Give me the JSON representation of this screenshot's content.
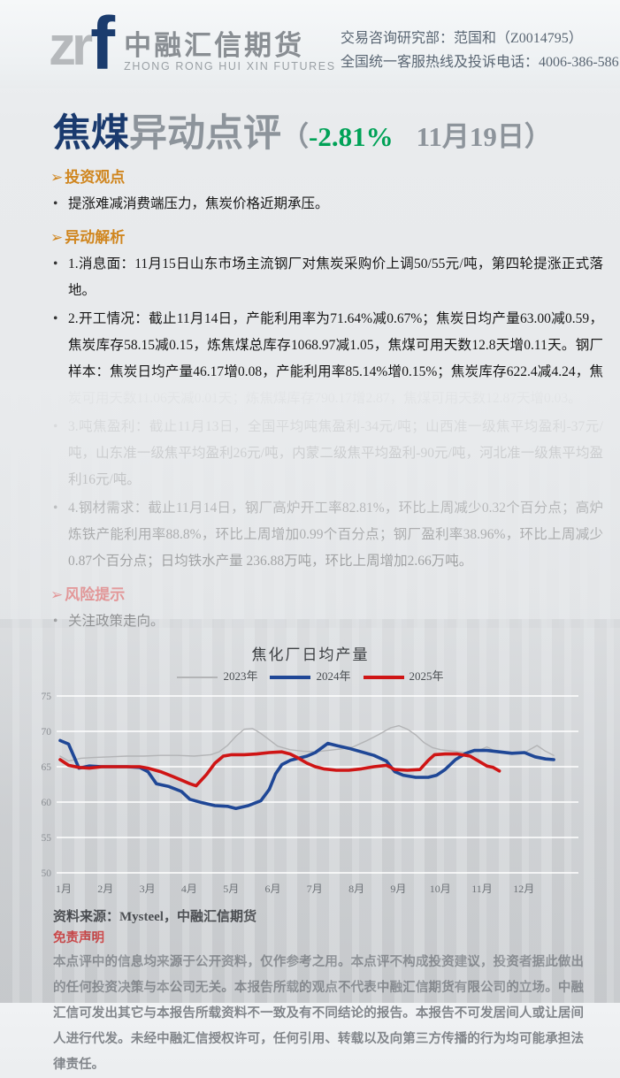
{
  "header": {
    "logo": {
      "mark_gray": "zr",
      "mark_blue": "f",
      "name_cn": "中融汇信期货",
      "name_en": "ZHONG RONG HUI XIN FUTURES"
    },
    "contact_line1": "交易咨询研究部：范国和（Z0014795）",
    "contact_line2": "全国统一客服热线及投诉电话：4006-386-586"
  },
  "title": {
    "product": "焦煤",
    "suffix": "异动点评",
    "paren_open": "（",
    "change": "-2.81%",
    "date": "11月19日",
    "paren_close": "）",
    "change_color": "#00a257",
    "product_color": "#1a3a6e"
  },
  "sections": {
    "viewpoint": {
      "heading": "投资观点",
      "bullets": [
        "提涨难减消费端压力，焦炭价格近期承压。"
      ]
    },
    "analysis": {
      "heading": "异动解析",
      "bullets": [
        "1.消息面：11月15日山东市场主流钢厂对焦炭采购价上调50/55元/吨，第四轮提涨正式落地。",
        "2.开工情况：截止11月14日，产能利用率为71.64%减0.67%；焦炭日均产量63.00减0.59，焦炭库存58.15减0.15，炼焦煤总库存1068.97减1.05，焦煤可用天数12.8天增0.11天。钢厂样本：焦炭日均产量46.17增0.08，产能利用率85.14%增0.15%；焦炭库存622.4减4.24，焦炭可用天数11.06天减0.01天；炼焦煤库存790.17增2.87，焦煤可用天数12.87天增0.03。",
        "3.吨焦盈利：截止11月13日，全国平均吨焦盈利-34元/吨；山西准一级焦平均盈利-37元/吨，山东准一级焦平均盈利26元/吨，内蒙二级焦平均盈利-90元/吨，河北准一级焦平均盈利16元/吨。",
        "4.钢材需求：截止11月14日，钢厂高炉开工率82.81%，环比上周减少0.32个百分点；高炉炼铁产能利用率88.8%，环比上周增加0.99个百分点；钢厂盈利率38.96%，环比上周减少0.87个百分点；日均铁水产量 236.88万吨，环比上周增加2.66万吨。"
      ]
    },
    "risk": {
      "heading": "风险提示",
      "bullets": [
        "关注政策走向。"
      ]
    }
  },
  "source_line": "资料来源：Mysteel，中融汇信期货",
  "disclaimer": {
    "heading": "免责声明",
    "body": "本点评中的信息均来源于公开资料，仅作参考之用。本点评不构成投资建议，投资者据此做出的任何投资决策与本公司无关。本报告所载的观点不代表中融汇信期货有限公司的立场。中融汇信可发出其它与本报告所载资料不一致及有不同结论的报告。本报告不可发居间人或让居间人进行代发。未经中融汇信授权许可，任何引用、转载以及向第三方传播的行为均可能承担法律责任。"
  },
  "chart_data": {
    "type": "line",
    "title": "焦化厂日均产量",
    "legend_position": "top",
    "grid": "horizontal",
    "x_axis": {
      "unit": "month",
      "tick_labels": [
        "1月",
        "2月",
        "3月",
        "4月",
        "5月",
        "6月",
        "7月",
        "8月",
        "9月",
        "10月",
        "11月",
        "12月"
      ]
    },
    "y_axis": {
      "min": 50,
      "max": 75,
      "ticks": [
        50,
        55,
        60,
        65,
        70,
        75
      ]
    },
    "series": [
      {
        "name": "2023年",
        "color": "#b3b4b6",
        "width": 1.4,
        "points": [
          [
            1,
            66.5
          ],
          [
            1.2,
            65.8
          ],
          [
            1.5,
            66.2
          ],
          [
            1.8,
            66.3
          ],
          [
            2.2,
            66.4
          ],
          [
            2.6,
            66.5
          ],
          [
            3,
            66.5
          ],
          [
            3.4,
            66.6
          ],
          [
            3.8,
            66.6
          ],
          [
            4.2,
            66.5
          ],
          [
            4.6,
            66.7
          ],
          [
            4.8,
            67.1
          ],
          [
            5,
            68
          ],
          [
            5.2,
            69.3
          ],
          [
            5.4,
            70.3
          ],
          [
            5.6,
            70.4
          ],
          [
            5.8,
            69.7
          ],
          [
            6,
            68.8
          ],
          [
            6.2,
            67.9
          ],
          [
            6.5,
            67.4
          ],
          [
            6.8,
            67.2
          ],
          [
            7.1,
            67.1
          ],
          [
            7.4,
            67.3
          ],
          [
            7.7,
            67.5
          ],
          [
            8,
            67.8
          ],
          [
            8.3,
            68.6
          ],
          [
            8.6,
            69.5
          ],
          [
            8.9,
            70.5
          ],
          [
            9.1,
            70.8
          ],
          [
            9.3,
            70.3
          ],
          [
            9.5,
            69.5
          ],
          [
            9.7,
            68.4
          ],
          [
            9.9,
            67.7
          ],
          [
            10.1,
            67.4
          ],
          [
            10.4,
            67.2
          ],
          [
            10.7,
            67
          ],
          [
            11,
            67.3
          ],
          [
            11.2,
            67.8
          ],
          [
            11.4,
            67.2
          ],
          [
            11.6,
            66.9
          ],
          [
            11.9,
            66.9
          ],
          [
            12.1,
            67
          ],
          [
            12.4,
            68
          ],
          [
            12.6,
            67.2
          ],
          [
            12.8,
            66.6
          ]
        ]
      },
      {
        "name": "2024年",
        "color": "#1f4796",
        "width": 3.6,
        "points": [
          [
            1,
            68.7
          ],
          [
            1.2,
            68.2
          ],
          [
            1.45,
            64.8
          ],
          [
            1.7,
            65.1
          ],
          [
            2,
            65
          ],
          [
            2.3,
            65
          ],
          [
            2.6,
            65
          ],
          [
            2.9,
            64.9
          ],
          [
            3.1,
            64.3
          ],
          [
            3.3,
            62.6
          ],
          [
            3.6,
            62.2
          ],
          [
            3.9,
            61.5
          ],
          [
            4.1,
            60.4
          ],
          [
            4.4,
            59.9
          ],
          [
            4.7,
            59.5
          ],
          [
            5,
            59.4
          ],
          [
            5.2,
            59.1
          ],
          [
            5.5,
            59.5
          ],
          [
            5.8,
            60.2
          ],
          [
            6,
            61.8
          ],
          [
            6.15,
            64
          ],
          [
            6.3,
            65.3
          ],
          [
            6.5,
            65.9
          ],
          [
            6.7,
            66.2
          ],
          [
            6.9,
            66.5
          ],
          [
            7.1,
            67
          ],
          [
            7.4,
            68.3
          ],
          [
            7.6,
            68
          ],
          [
            7.9,
            67.6
          ],
          [
            8.2,
            67.1
          ],
          [
            8.5,
            66.6
          ],
          [
            8.8,
            65.8
          ],
          [
            9,
            64.3
          ],
          [
            9.2,
            63.8
          ],
          [
            9.5,
            63.5
          ],
          [
            9.8,
            63.5
          ],
          [
            10,
            63.8
          ],
          [
            10.2,
            64.6
          ],
          [
            10.45,
            66
          ],
          [
            10.7,
            66.9
          ],
          [
            10.9,
            67.3
          ],
          [
            11.2,
            67.3
          ],
          [
            11.5,
            67.1
          ],
          [
            11.8,
            66.9
          ],
          [
            12.1,
            67
          ],
          [
            12.35,
            66.4
          ],
          [
            12.6,
            66.1
          ],
          [
            12.8,
            66
          ]
        ]
      },
      {
        "name": "2025年",
        "color": "#cf1515",
        "width": 3.6,
        "points": [
          [
            1,
            66
          ],
          [
            1.2,
            65.2
          ],
          [
            1.45,
            64.9
          ],
          [
            1.7,
            64.8
          ],
          [
            2,
            65
          ],
          [
            2.3,
            65
          ],
          [
            2.6,
            65
          ],
          [
            2.9,
            65
          ],
          [
            3.1,
            64.8
          ],
          [
            3.4,
            64.3
          ],
          [
            3.7,
            63.6
          ],
          [
            3.9,
            63.1
          ],
          [
            4.1,
            62.6
          ],
          [
            4.25,
            62.3
          ],
          [
            4.5,
            63.9
          ],
          [
            4.7,
            65.5
          ],
          [
            4.9,
            66.5
          ],
          [
            5.1,
            66.7
          ],
          [
            5.4,
            66.7
          ],
          [
            5.7,
            66.8
          ],
          [
            6,
            67
          ],
          [
            6.3,
            67.1
          ],
          [
            6.5,
            66.8
          ],
          [
            6.7,
            66.2
          ],
          [
            6.9,
            65.5
          ],
          [
            7.1,
            65
          ],
          [
            7.3,
            64.7
          ],
          [
            7.6,
            64.5
          ],
          [
            7.9,
            64.5
          ],
          [
            8.2,
            64.7
          ],
          [
            8.5,
            65
          ],
          [
            8.8,
            65.2
          ],
          [
            9,
            64.6
          ],
          [
            9.3,
            64.5
          ],
          [
            9.6,
            64.6
          ],
          [
            9.8,
            65.9
          ],
          [
            9.95,
            66.7
          ],
          [
            10.2,
            66.8
          ],
          [
            10.5,
            66.8
          ],
          [
            10.8,
            66.5
          ],
          [
            11,
            65.8
          ],
          [
            11.2,
            65.1
          ],
          [
            11.35,
            64.9
          ],
          [
            11.5,
            64.4
          ]
        ]
      }
    ]
  }
}
